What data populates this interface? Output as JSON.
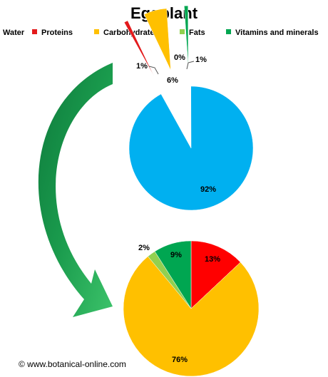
{
  "title": "Eggplant",
  "legend": [
    {
      "label": "Water",
      "color": "#00b0f0"
    },
    {
      "label": "Proteins",
      "color": "#e31a1c"
    },
    {
      "label": "Carbohydrates",
      "color": "#ffc000"
    },
    {
      "label": "Fats",
      "color": "#92d050"
    },
    {
      "label": "Vitamins and minerals",
      "color": "#00a651"
    }
  ],
  "footer": "© www.botanical-online.com",
  "arrow_color": "#1a9b4d",
  "chart_data": [
    {
      "type": "pie",
      "title": "",
      "categories": [
        "Water",
        "Proteins",
        "Carbohydrates",
        "Fats",
        "Vitamins and minerals"
      ],
      "values": [
        92,
        1,
        6,
        0,
        1
      ],
      "labels": [
        "92%",
        "1%",
        "6%",
        "0%",
        "1%"
      ],
      "colors": [
        "#00b0f0",
        "#e31a1c",
        "#ffc000",
        "#92d050",
        "#00a651"
      ],
      "exploded": [
        "Proteins",
        "Carbohydrates",
        "Fats",
        "Vitamins and minerals"
      ]
    },
    {
      "type": "pie",
      "title": "",
      "categories": [
        "Proteins",
        "Carbohydrates",
        "Fats",
        "Vitamins and minerals"
      ],
      "values": [
        13,
        76,
        2,
        9
      ],
      "labels": [
        "13%",
        "76%",
        "2%",
        "9%"
      ],
      "colors": [
        "#ff0000",
        "#ffc000",
        "#92d050",
        "#00a651"
      ]
    }
  ]
}
